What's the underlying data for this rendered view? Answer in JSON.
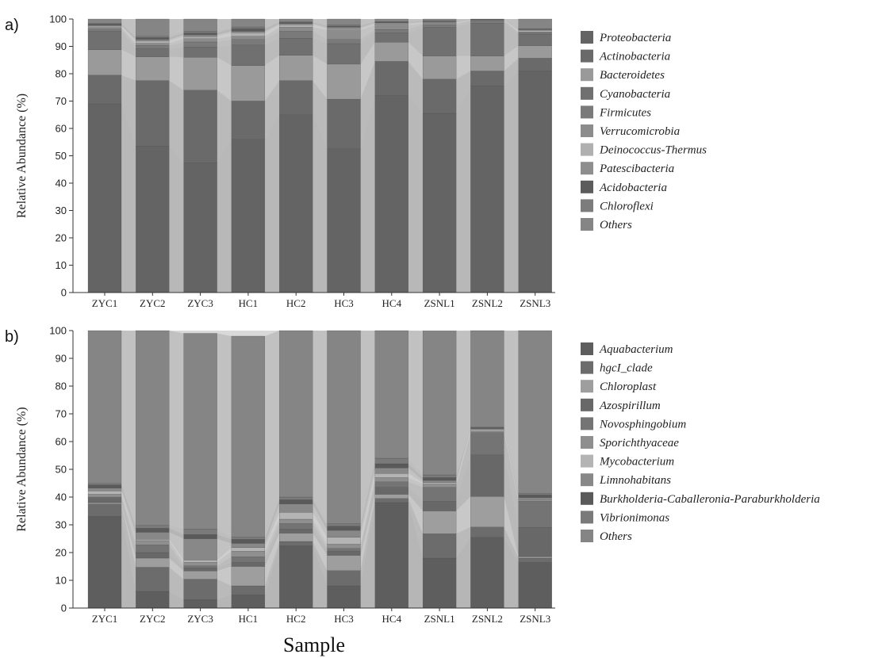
{
  "chart_data": [
    {
      "panel_label": "a)",
      "type": "bar",
      "stacked": true,
      "ylabel": "Relative Abundance (%)",
      "ylim": [
        0,
        100
      ],
      "yticks": [
        0,
        10,
        20,
        30,
        40,
        50,
        60,
        70,
        80,
        90,
        100
      ],
      "categories": [
        "ZYC1",
        "ZYC2",
        "ZYC3",
        "HC1",
        "HC2",
        "HC3",
        "HC4",
        "ZSNL1",
        "ZSNL2",
        "ZSNL3"
      ],
      "series": [
        {
          "name": "Proteobacteria",
          "color": "#646464",
          "values": [
            69,
            53.5,
            47.5,
            56,
            65,
            52.5,
            72,
            65.5,
            75.5,
            81
          ]
        },
        {
          "name": "Actinobacteria",
          "color": "#6a6a6a",
          "values": [
            10.5,
            24,
            26.5,
            14,
            12.5,
            18.2,
            12.5,
            12.5,
            5.5,
            4.7
          ]
        },
        {
          "name": "Bacteroidetes",
          "color": "#9a9a9a",
          "values": [
            9.3,
            8.7,
            12,
            13,
            9.2,
            12.8,
            7,
            8.5,
            5.5,
            4.5
          ]
        },
        {
          "name": "Cyanobacteria",
          "color": "#707070",
          "values": [
            6.7,
            2.9,
            3.8,
            7.5,
            6.3,
            7.5,
            3.5,
            10.5,
            12,
            4.3
          ]
        },
        {
          "name": "Firmicutes",
          "color": "#7a7a7a",
          "values": [
            0.8,
            1.2,
            1.8,
            2,
            2.5,
            1.5,
            1.2,
            0.9,
            0.8,
            0.5
          ]
        },
        {
          "name": "Verrucomicrobia",
          "color": "#8c8c8c",
          "values": [
            0.6,
            0.8,
            1.2,
            1.2,
            1.5,
            3.5,
            1.5,
            0.5,
            0.3,
            0.3
          ]
        },
        {
          "name": "Deinococcus-Thermus",
          "color": "#b0b0b0",
          "values": [
            0.5,
            0.9,
            0.8,
            1.3,
            0.9,
            0.5,
            0.4,
            0.3,
            0.1,
            0.6
          ]
        },
        {
          "name": "Patescibacteria",
          "color": "#8e8e8e",
          "values": [
            0.3,
            0.5,
            0.6,
            0.5,
            0.4,
            0.5,
            0.5,
            0.3,
            0.1,
            0.2
          ]
        },
        {
          "name": "Acidobacteria",
          "color": "#5c5c5c",
          "values": [
            0.5,
            0.7,
            0.7,
            1,
            0.4,
            0.4,
            0.3,
            0.2,
            0.1,
            0.2
          ]
        },
        {
          "name": "Chloroflexi",
          "color": "#7c7c7c",
          "values": [
            0.3,
            0.5,
            0.7,
            0.6,
            0.3,
            0.5,
            0.2,
            0.2,
            0.05,
            0.2
          ]
        },
        {
          "name": "Others",
          "color": "#858585",
          "values": [
            1.5,
            6.3,
            4.4,
            2.9,
            1,
            2.1,
            0.9,
            0.6,
            0.05,
            3.5
          ]
        }
      ]
    },
    {
      "panel_label": "b)",
      "type": "bar",
      "stacked": true,
      "ylabel": "Relative Abundance (%)",
      "xlabel": "Sample",
      "ylim": [
        0,
        100
      ],
      "yticks": [
        0,
        10,
        20,
        30,
        40,
        50,
        60,
        70,
        80,
        90,
        100
      ],
      "categories": [
        "ZYC1",
        "ZYC2",
        "ZYC3",
        "HC1",
        "HC2",
        "HC3",
        "HC4",
        "ZSNL1",
        "ZSNL2",
        "ZSNL3"
      ],
      "series": [
        {
          "name": "Aquabacterium",
          "color": "#5e5e5e",
          "values": [
            33,
            6,
            3,
            4.8,
            22.5,
            8,
            38,
            18,
            25.5,
            16.5
          ]
        },
        {
          "name": "hgcI_clade",
          "color": "#6c6c6c",
          "values": [
            4.5,
            8.7,
            7.4,
            3.2,
            1.5,
            5.5,
            1.5,
            8.8,
            3.7,
            1.5
          ]
        },
        {
          "name": "Chloroplast",
          "color": "#9e9e9e",
          "values": [
            0.5,
            3.3,
            3,
            7,
            3,
            5.5,
            1.5,
            8.2,
            11,
            0.5
          ]
        },
        {
          "name": "Azospirillum",
          "color": "#686868",
          "values": [
            1.5,
            2,
            1,
            1.5,
            1.5,
            1.5,
            2.5,
            3.5,
            15,
            10.5
          ]
        },
        {
          "name": "Novosphingobium",
          "color": "#747474",
          "values": [
            0.5,
            2.8,
            0.8,
            2,
            2,
            1,
            2,
            5,
            8,
            9.5
          ]
        },
        {
          "name": "Sporichthyaceae",
          "color": "#8f8f8f",
          "values": [
            1,
            1.5,
            1.3,
            2,
            1.5,
            1.5,
            1.5,
            1.2,
            0.5,
            0.5
          ]
        },
        {
          "name": "Mycobacterium",
          "color": "#b4b4b4",
          "values": [
            1.2,
            0.5,
            0.8,
            1.3,
            2.5,
            2.5,
            1.5,
            0.5,
            0.5,
            0.3
          ]
        },
        {
          "name": "Limnohabitans",
          "color": "#888888",
          "values": [
            1,
            2.5,
            7.7,
            1.5,
            3,
            2.5,
            2,
            0.8,
            0.5,
            0.5
          ]
        },
        {
          "name": "Burkholderia-Caballeronia-Paraburkholderia",
          "color": "#5a5a5a",
          "values": [
            1.2,
            1.5,
            1.5,
            1.5,
            1.5,
            1.5,
            1.5,
            1,
            0.3,
            1
          ]
        },
        {
          "name": "Vibrionimonas",
          "color": "#7a7a7a",
          "values": [
            0.5,
            1,
            2,
            0.8,
            1,
            1,
            2,
            1,
            0.2,
            0.5
          ]
        },
        {
          "name": "Others",
          "color": "#858585",
          "values": [
            55.1,
            70.2,
            70.5,
            72.4,
            60,
            69.5,
            46,
            51.9,
            34.8,
            58.7
          ]
        }
      ]
    }
  ]
}
